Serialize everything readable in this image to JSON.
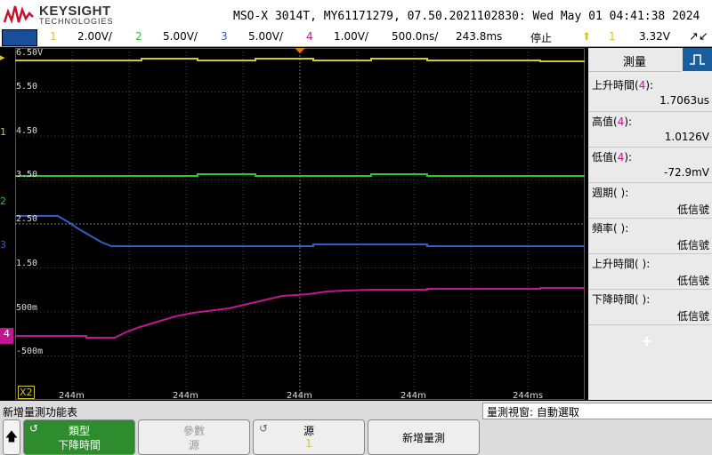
{
  "header": {
    "brand": "KEYSIGHT",
    "brand_sub": "TECHNOLOGIES",
    "model_line": "MSO-X 3014T, MY61171279, 07.50.2021102830: Wed May 01 04:41:38 2024"
  },
  "status": {
    "ch1_num": "1",
    "ch1_scale": "2.00V/",
    "ch2_num": "2",
    "ch2_scale": "5.00V/",
    "ch3_num": "3",
    "ch3_scale": "5.00V/",
    "ch4_num": "4",
    "ch4_scale": "1.00V/",
    "timebase": "500.0ns/",
    "delay": "243.8ms",
    "run_state": "停止",
    "trig_source": "1",
    "trig_level": "3.32V"
  },
  "colors": {
    "ch1": "#d4c72a",
    "ch2": "#2ec52e",
    "ch3": "#2f5fc4",
    "ch4": "#c0168f"
  },
  "y_labels": [
    "6.50V",
    "5.50",
    "4.50",
    "3.50",
    "2.50",
    "1.50",
    "500m",
    "-500m"
  ],
  "x_labels": [
    "244m",
    "244m",
    "244m",
    "244m",
    "244ms"
  ],
  "ref_labels": {
    "ch1": "1",
    "ch2": "2",
    "ch3": "3",
    "ch4": "4",
    "x2": "X2"
  },
  "panel": {
    "title": "測量",
    "icon": "measure-tab-icon",
    "measurements": [
      {
        "label": "上升時間",
        "ch": "4",
        "value": "1.7063us"
      },
      {
        "label": "高值",
        "ch": "4",
        "value": "1.0126V"
      },
      {
        "label": "低值",
        "ch": "4",
        "value": "-72.9mV"
      },
      {
        "label": "週期",
        "ch": " ",
        "value": "低信號"
      },
      {
        "label": "頻率",
        "ch": " ",
        "value": "低信號"
      },
      {
        "label": "上升時間",
        "ch": " ",
        "value": "低信號"
      },
      {
        "label": "下降時間",
        "ch": " ",
        "value": "低信號"
      }
    ],
    "add_symbol": "+"
  },
  "softkeys": {
    "menu_title": "新增量測功能表",
    "window_label": "量測視窗: 自動選取",
    "type_l1": "類型",
    "type_l2": "下降時間",
    "param_l1": "參數",
    "param_l2": "源",
    "source_l1": "源",
    "source_l2": "1",
    "add_meas": "新增量測"
  }
}
